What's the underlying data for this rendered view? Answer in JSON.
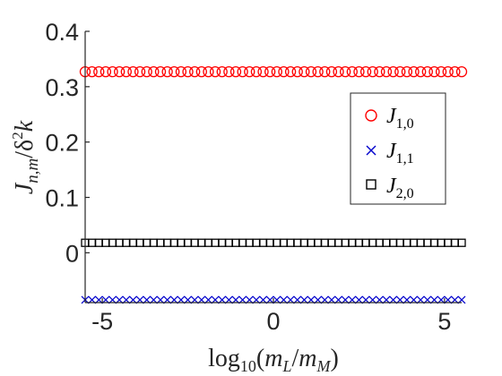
{
  "chart_data": {
    "type": "scatter",
    "xlabel": "log10(mL/mM)",
    "ylabel": "Jn,m/δ²k",
    "xlim": [
      -5.5,
      5.5
    ],
    "ylim": [
      -0.09,
      0.4
    ],
    "x_ticks": [
      -5,
      0,
      5
    ],
    "y_ticks": [
      0,
      0.1,
      0.2,
      0.3,
      0.4
    ],
    "x_tick_labels": [
      "-5",
      "0",
      "5"
    ],
    "y_tick_labels": [
      "0",
      "0.1",
      "0.2",
      "0.3",
      "0.4"
    ],
    "grid": false,
    "legend_position": "right",
    "x": [
      -5.5,
      -5.3,
      -5.1,
      -4.9,
      -4.7,
      -4.5,
      -4.3,
      -4.1,
      -3.9,
      -3.7,
      -3.5,
      -3.3,
      -3.1,
      -2.9,
      -2.7,
      -2.5,
      -2.3,
      -2.1,
      -1.9,
      -1.7,
      -1.5,
      -1.3,
      -1.1,
      -0.9,
      -0.7,
      -0.5,
      -0.3,
      -0.1,
      0.1,
      0.3,
      0.5,
      0.7,
      0.9,
      1.1,
      1.3,
      1.5,
      1.7,
      1.9,
      2.1,
      2.3,
      2.5,
      2.7,
      2.9,
      3.1,
      3.3,
      3.5,
      3.7,
      3.9,
      4.1,
      4.3,
      4.5,
      4.7,
      4.9,
      5.1,
      5.3,
      5.5
    ],
    "series": [
      {
        "name": "J1,0",
        "marker": "circle",
        "color": "#ff0000",
        "value": 0.327
      },
      {
        "name": "J1,1",
        "marker": "x",
        "color": "#0000cc",
        "value": -0.085
      },
      {
        "name": "J2,0",
        "marker": "square",
        "color": "#000000",
        "value": 0.018
      }
    ]
  }
}
